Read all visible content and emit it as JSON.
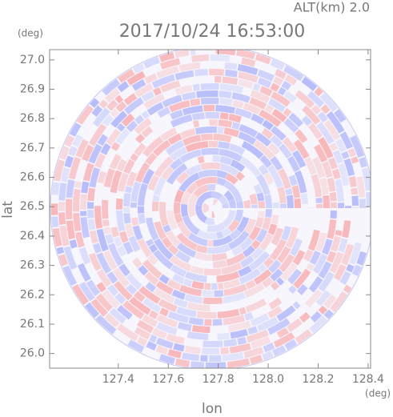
{
  "chart_data": {
    "type": "radar-ppi",
    "title": "2017/10/24 16:53:00",
    "subtitle": "ALT(km) 2.0",
    "x_label": "lon",
    "y_label": "lat",
    "x_unit": "(deg)",
    "y_unit": "(deg)",
    "xlim": [
      127.125,
      128.41
    ],
    "ylim": [
      25.95,
      27.035
    ],
    "xticks": [
      {
        "value": 127.4,
        "label": "127.4"
      },
      {
        "value": 127.6,
        "label": "127.6"
      },
      {
        "value": 127.8,
        "label": "127.8"
      },
      {
        "value": 128.0,
        "label": "128.0"
      },
      {
        "value": 128.2,
        "label": "128.2"
      },
      {
        "value": 128.4,
        "label": "128.4"
      }
    ],
    "yticks": [
      {
        "value": 26.0,
        "label": "26.0"
      },
      26.1,
      26.2,
      26.3,
      26.4,
      26.5,
      26.6,
      26.7,
      26.8,
      26.9,
      {
        "value": 27.0,
        "label": "27.0"
      }
    ]
  }
}
